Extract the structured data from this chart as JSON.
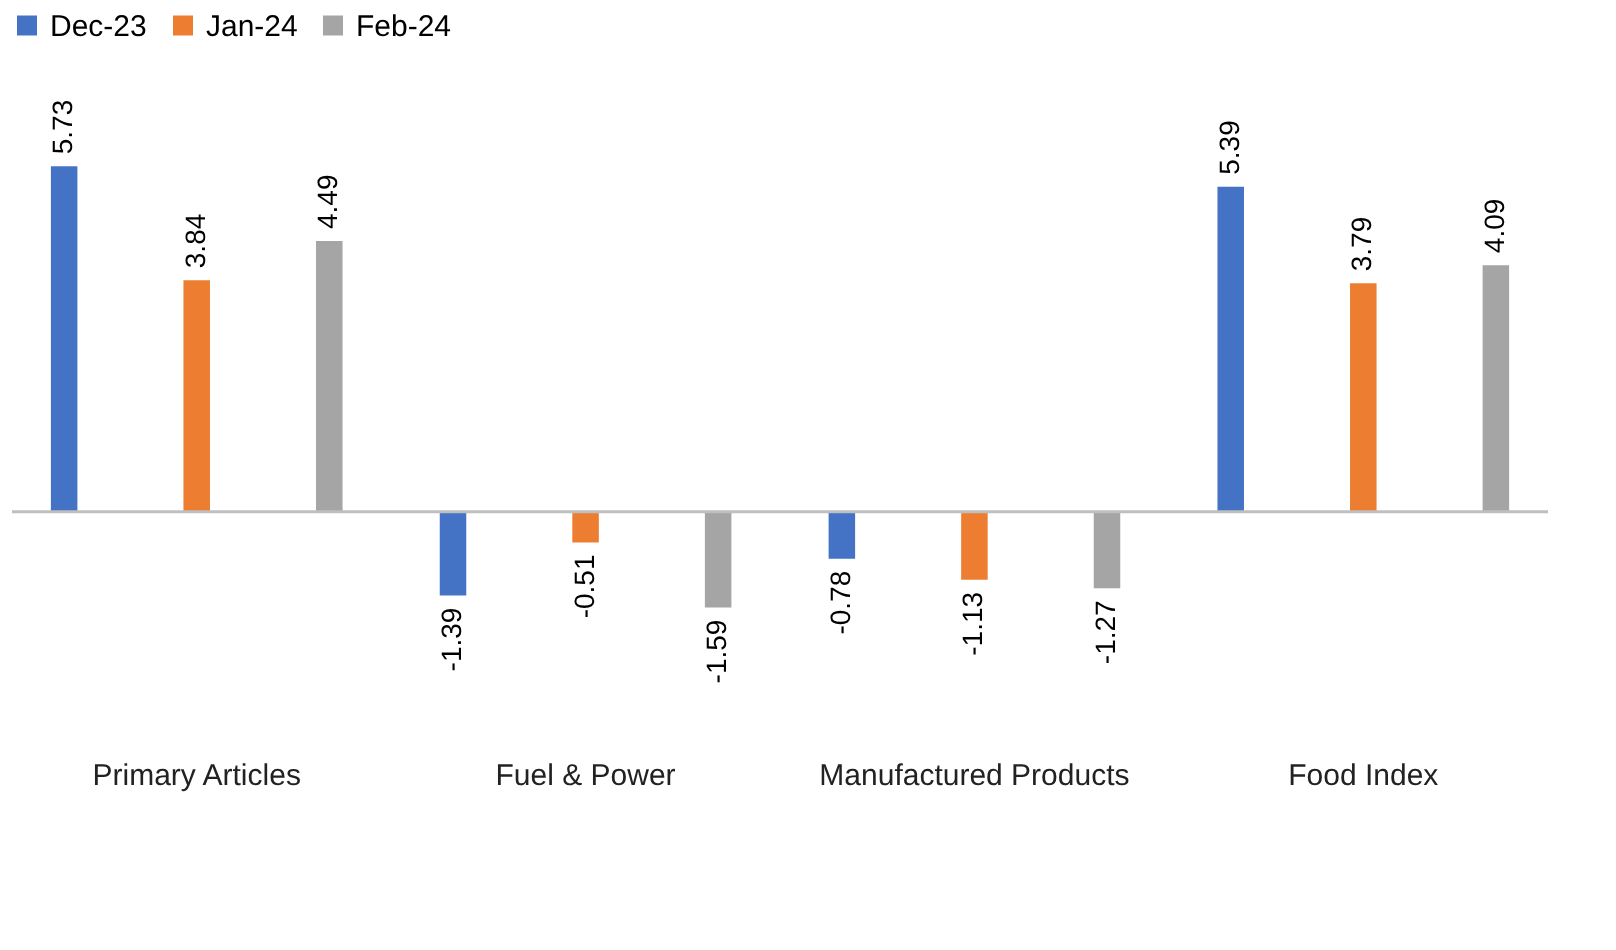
{
  "chart_data": {
    "type": "bar",
    "categories": [
      "Primary Articles",
      "Fuel & Power",
      "Manufactured Products",
      "Food Index"
    ],
    "series": [
      {
        "name": "Dec-23",
        "color": "#4472c4",
        "values": [
          5.73,
          -1.39,
          -0.78,
          5.39
        ]
      },
      {
        "name": "Jan-24",
        "color": "#ed7d31",
        "values": [
          3.84,
          -0.51,
          -1.13,
          3.79
        ]
      },
      {
        "name": "Feb-24",
        "color": "#a5a5a5",
        "values": [
          4.49,
          -1.59,
          -1.27,
          4.09
        ]
      }
    ],
    "data_labels": true,
    "legend": "top",
    "grid": false
  }
}
